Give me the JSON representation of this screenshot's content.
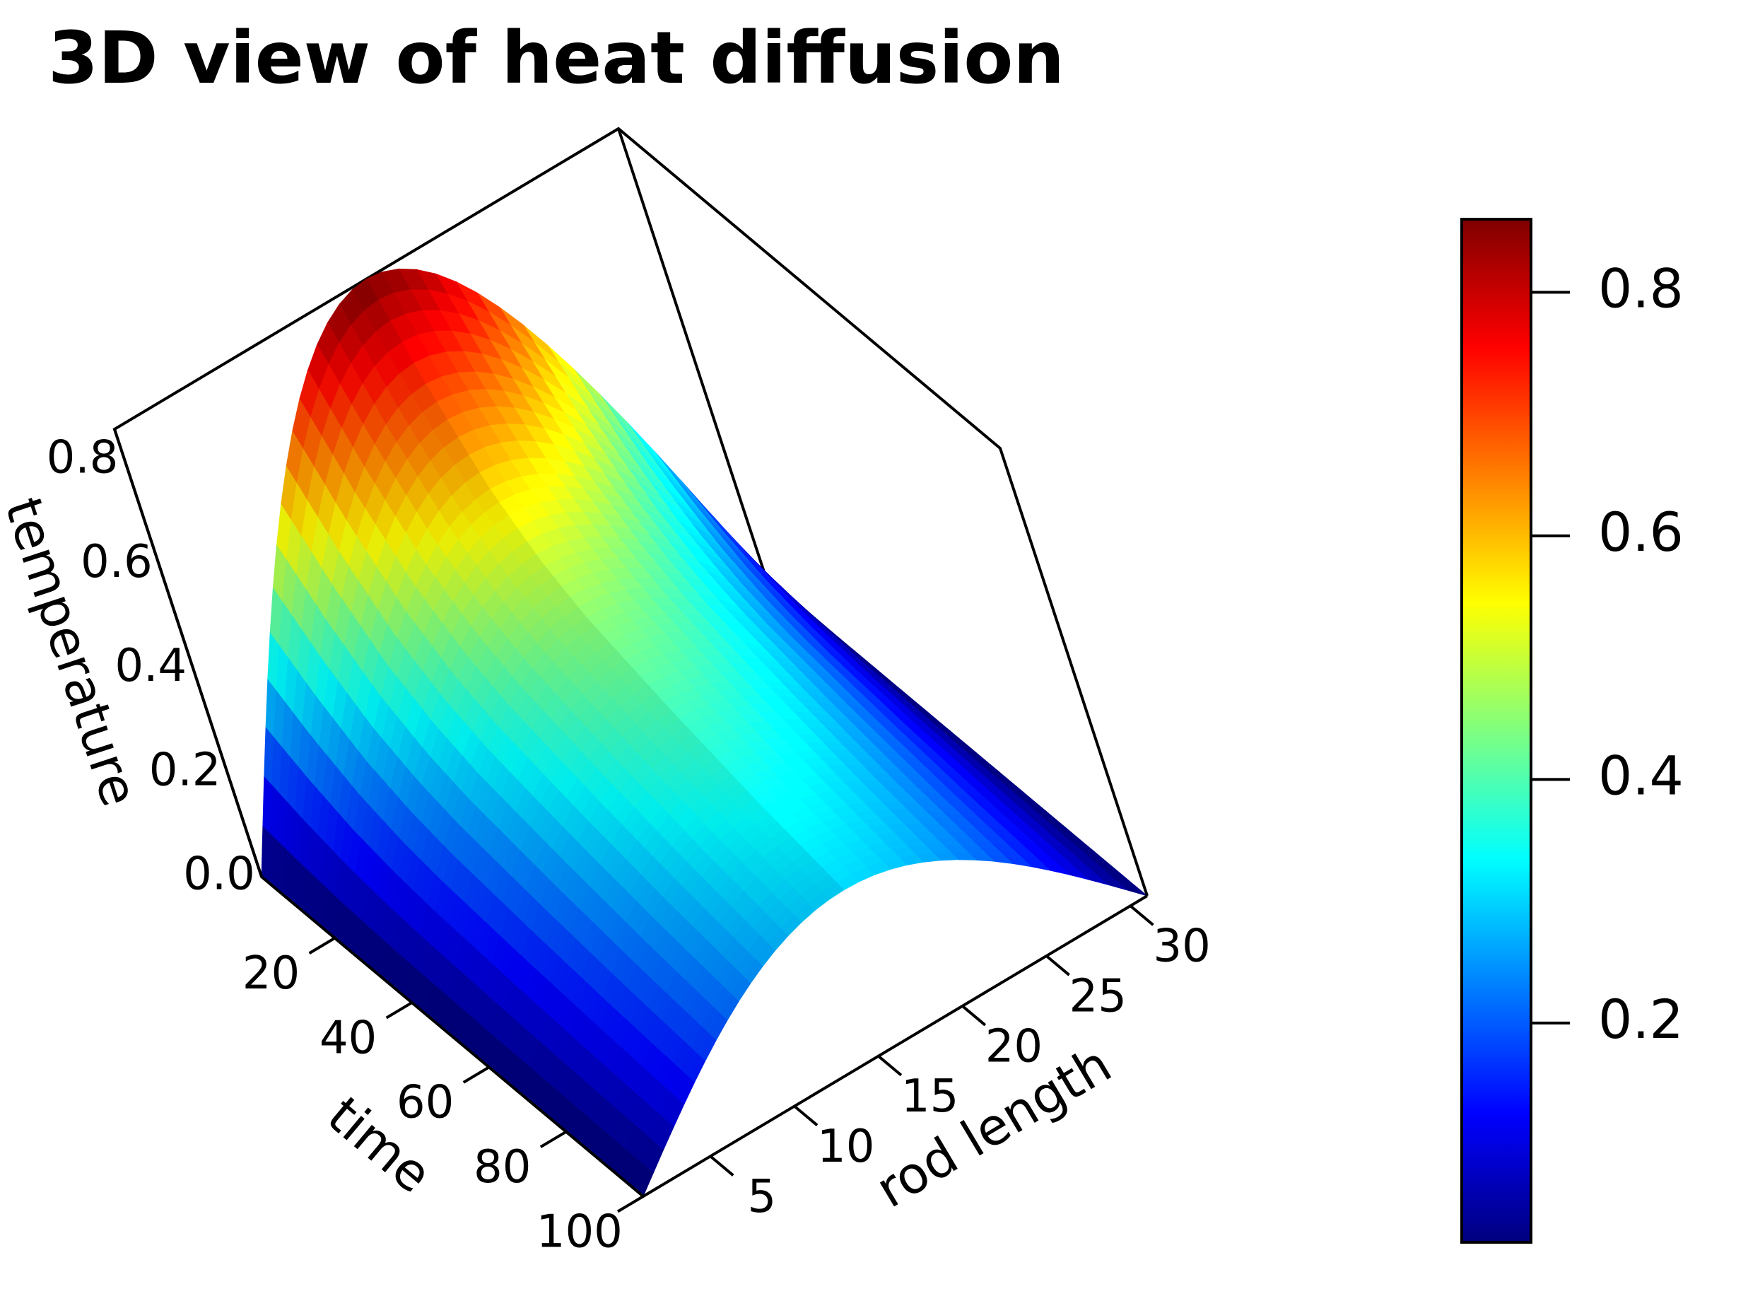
{
  "chart_data": {
    "type": "surface3d",
    "title": "3D view of heat diffusion",
    "x_axis": {
      "label": "time",
      "ticks": [
        20,
        40,
        60,
        80,
        100
      ],
      "range": [
        1,
        100
      ]
    },
    "y_axis": {
      "label": "rod length",
      "ticks": [
        5,
        10,
        15,
        20,
        25,
        30
      ],
      "range": [
        1,
        31
      ]
    },
    "z_axis": {
      "label": "temperature",
      "ticks": [
        0.0,
        0.2,
        0.4,
        0.6,
        0.8
      ],
      "tick_labels": [
        "0.0",
        "0.2",
        "0.4",
        "0.6",
        "0.8"
      ],
      "range": [
        0,
        0.86
      ]
    },
    "surface": {
      "function": "z = A(t) * sin(pi * (y - 1) / 30), heat equation with both ends held at 0",
      "peak_value": 0.86,
      "peak_location": {
        "time": 1,
        "rod_length": 16
      },
      "amplitude_by_time": [
        {
          "time": 1,
          "value": 0.86
        },
        {
          "time": 10,
          "value": 0.71
        },
        {
          "time": 20,
          "value": 0.58
        },
        {
          "time": 30,
          "value": 0.5
        },
        {
          "time": 40,
          "value": 0.45
        },
        {
          "time": 60,
          "value": 0.39
        },
        {
          "time": 80,
          "value": 0.34
        },
        {
          "time": 100,
          "value": 0.3
        }
      ],
      "edge_value": 0.0
    },
    "colorbar": {
      "colormap": "jet",
      "range": [
        0.02,
        0.86
      ],
      "ticks": [
        0.2,
        0.4,
        0.6,
        0.8
      ],
      "tick_labels": [
        "0.2",
        "0.4",
        "0.6",
        "0.8"
      ],
      "placement": "right"
    },
    "colors": {
      "jet": [
        "#00007f",
        "#0000ff",
        "#007fff",
        "#00ffff",
        "#7fff7f",
        "#ffff00",
        "#ff7f00",
        "#ff0000",
        "#7f0000"
      ],
      "frame": "#000000"
    }
  }
}
